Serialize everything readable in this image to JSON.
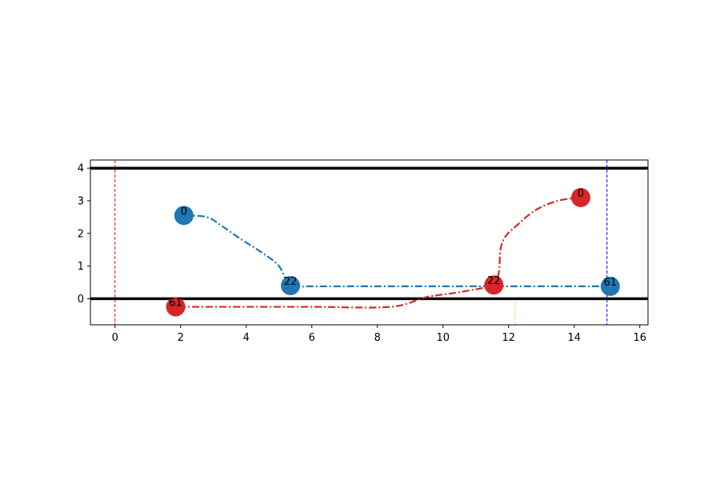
{
  "chart_data": {
    "type": "line",
    "title": "",
    "xlabel": "",
    "ylabel": "",
    "xlim": [
      -0.75,
      16.25
    ],
    "ylim": [
      -0.8,
      4.25
    ],
    "xticks": [
      0,
      2,
      4,
      6,
      8,
      10,
      12,
      14,
      16
    ],
    "yticks": [
      0,
      1,
      2,
      3,
      4
    ],
    "xtick_labels": [
      "0",
      "2",
      "4",
      "6",
      "8",
      "10",
      "12",
      "14",
      "16"
    ],
    "ytick_labels": [
      "0",
      "1",
      "2",
      "3",
      "4"
    ],
    "grid": false,
    "hlines": [
      {
        "y": 4,
        "color": "#000000"
      },
      {
        "y": 0,
        "color": "#000000"
      }
    ],
    "vlines": [
      {
        "x": 0,
        "color": "#ff0000",
        "y_from": -0.8,
        "y_to": 4.25
      },
      {
        "x": 15,
        "color": "#0000ff",
        "y_from": -0.8,
        "y_to": 4.25
      },
      {
        "x": 12.2,
        "color": "#ffcc33",
        "y_from": -0.8,
        "y_to": -0.1
      }
    ],
    "series": [
      {
        "color": "#1f77b4",
        "x": [
          2.1,
          2.8,
          3.3,
          3.8,
          4.5,
          5.0,
          5.35,
          6.0,
          8.0,
          10.0,
          12.0,
          14.0,
          15.1
        ],
        "y": [
          2.55,
          2.5,
          2.2,
          1.85,
          1.4,
          1.0,
          0.4,
          0.38,
          0.38,
          0.38,
          0.38,
          0.38,
          0.38
        ],
        "markers": [
          {
            "x": 2.1,
            "y": 2.55,
            "label": "0"
          },
          {
            "x": 5.35,
            "y": 0.4,
            "label": "22"
          },
          {
            "x": 15.1,
            "y": 0.38,
            "label": "61"
          }
        ]
      },
      {
        "color": "#d62728",
        "x": [
          14.2,
          13.5,
          12.8,
          12.2,
          11.9,
          11.75,
          11.7,
          11.5,
          10.5,
          9.5,
          8.4,
          6.0,
          4.0,
          1.85
        ],
        "y": [
          3.1,
          3.0,
          2.7,
          2.2,
          1.9,
          1.5,
          0.8,
          0.42,
          0.2,
          0.05,
          -0.25,
          -0.25,
          -0.25,
          -0.25
        ],
        "markers": [
          {
            "x": 14.2,
            "y": 3.1,
            "label": "0"
          },
          {
            "x": 11.55,
            "y": 0.42,
            "label": "22"
          },
          {
            "x": 1.85,
            "y": -0.25,
            "label": "61"
          }
        ]
      }
    ]
  }
}
